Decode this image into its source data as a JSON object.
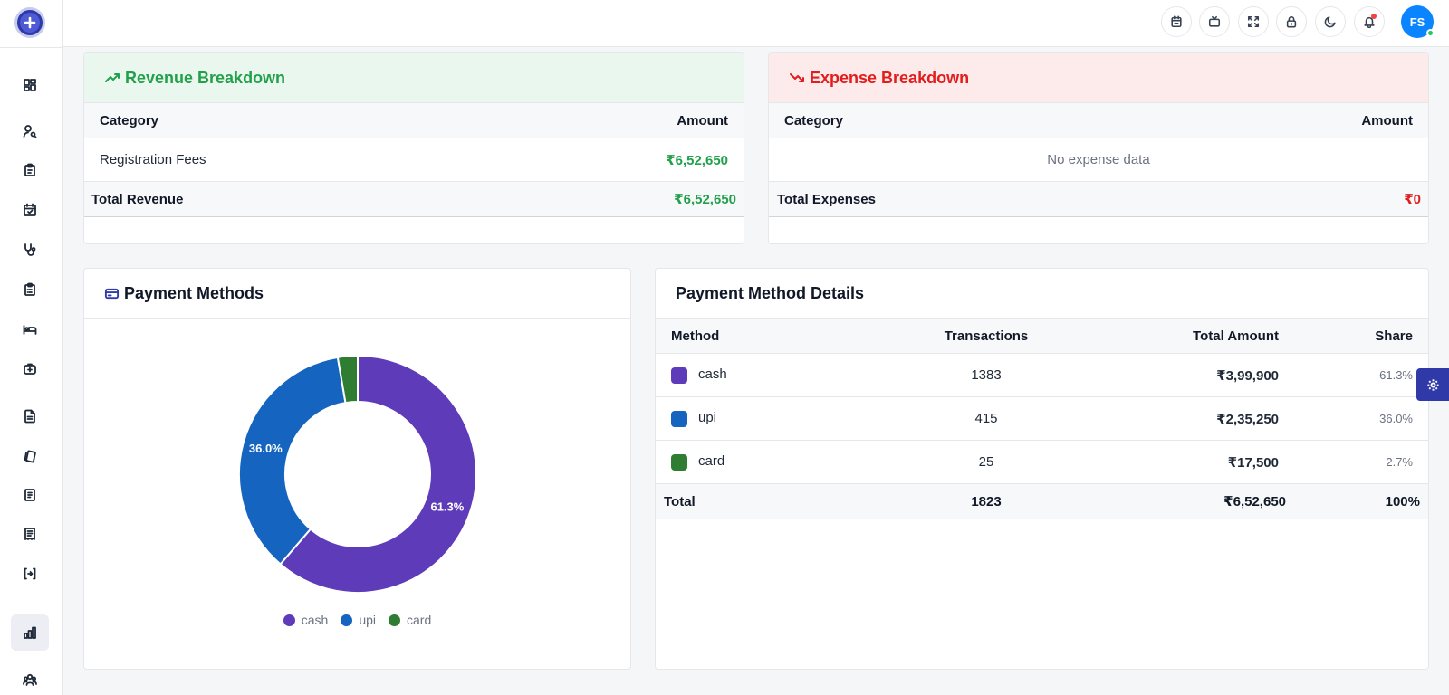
{
  "header": {
    "avatar_initials": "FS"
  },
  "revenue": {
    "title": "Revenue Breakdown",
    "col_category": "Category",
    "col_amount": "Amount",
    "rows": [
      {
        "category": "Registration Fees",
        "amount": "₹6,52,650"
      }
    ],
    "total_label": "Total Revenue",
    "total_amount": "₹6,52,650"
  },
  "expense": {
    "title": "Expense Breakdown",
    "col_category": "Category",
    "col_amount": "Amount",
    "empty_text": "No expense data",
    "total_label": "Total Expenses",
    "total_amount": "₹0"
  },
  "payment_methods": {
    "title": "Payment Methods",
    "legend": [
      "cash",
      "upi",
      "card"
    ]
  },
  "payment_details": {
    "title": "Payment Method Details",
    "col_method": "Method",
    "col_transactions": "Transactions",
    "col_total": "Total Amount",
    "col_share": "Share",
    "rows": [
      {
        "method": "cash",
        "transactions": "1383",
        "amount": "₹3,99,900",
        "share": "61.3%",
        "color": "#5e3bb8"
      },
      {
        "method": "upi",
        "transactions": "415",
        "amount": "₹2,35,250",
        "share": "36.0%",
        "color": "#1565c0"
      },
      {
        "method": "card",
        "transactions": "25",
        "amount": "₹17,500",
        "share": "2.7%",
        "color": "#2e7d32"
      }
    ],
    "total_label": "Total",
    "total_transactions": "1823",
    "total_amount": "₹6,52,650",
    "total_share": "100%"
  },
  "chart_data": {
    "type": "pie",
    "categories": [
      "cash",
      "upi",
      "card"
    ],
    "values": [
      61.3,
      36.0,
      2.7
    ],
    "labels": [
      "61.3%",
      "36.0%",
      ""
    ],
    "colors": [
      "#5e3bb8",
      "#1565c0",
      "#2e7d32"
    ],
    "donut": true,
    "legend": "bottom"
  },
  "colors": {
    "accent": "#2f3aa8",
    "revenue_green": "#22a04b",
    "expense_red": "#e11d1d"
  },
  "icons": {
    "sidebar": [
      "dashboard-icon",
      "user-search-icon",
      "clipboard-icon",
      "calendar-check-icon",
      "stethoscope-icon",
      "clipboard-list-icon",
      "bed-icon",
      "ambulance-icon",
      "file-text-icon",
      "cards-icon",
      "receipt-icon",
      "report-icon",
      "exchange-icon",
      "bar-chart-icon",
      "users-icon"
    ],
    "header": [
      "calendar-icon",
      "tv-icon",
      "fullscreen-icon",
      "lock-icon",
      "moon-icon",
      "bell-icon"
    ]
  }
}
